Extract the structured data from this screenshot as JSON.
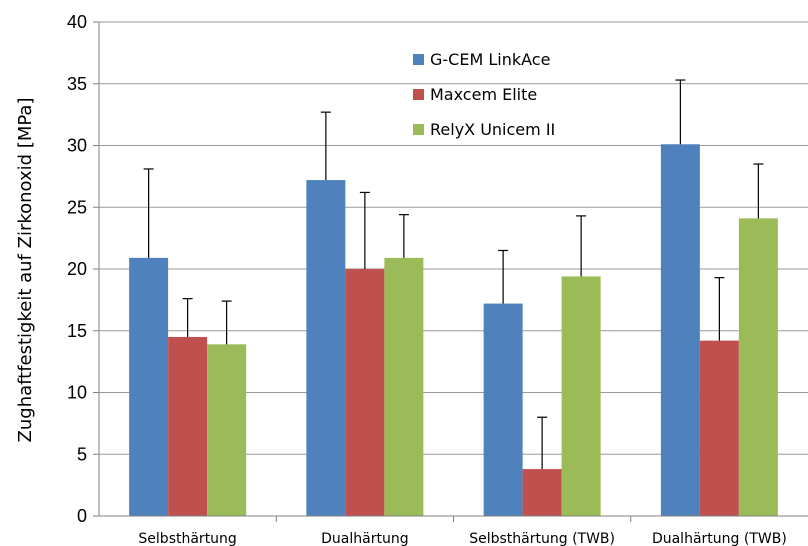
{
  "chart_data": {
    "type": "bar",
    "ylabel": "Zughaftfestigkeit auf Zirkonoxid [MPa]",
    "xlabel": "",
    "ylim": [
      0,
      40
    ],
    "yticks": [
      "0",
      "5",
      "10",
      "15",
      "20",
      "25",
      "30",
      "35",
      "40"
    ],
    "grid": "horizontal",
    "legend": "top-center",
    "categories": [
      "Selbsthärtung",
      "Dualhärtung",
      "Selbsthärtung (TWB)",
      "Dualhärtung (TWB)"
    ],
    "series": [
      {
        "name": "G-CEM LinkAce",
        "color": "#4F81BD",
        "values": [
          20.9,
          27.2,
          17.2,
          30.1
        ],
        "errors": [
          7.2,
          5.5,
          4.3,
          5.2
        ]
      },
      {
        "name": "Maxcem Elite",
        "color": "#C0504D",
        "values": [
          14.5,
          20.0,
          3.8,
          14.2
        ],
        "errors": [
          3.1,
          6.2,
          4.2,
          5.1
        ]
      },
      {
        "name": "RelyX Unicem II",
        "color": "#9BBB59",
        "values": [
          13.9,
          20.9,
          19.4,
          24.1
        ],
        "errors": [
          3.5,
          3.5,
          4.9,
          4.4
        ]
      }
    ]
  }
}
